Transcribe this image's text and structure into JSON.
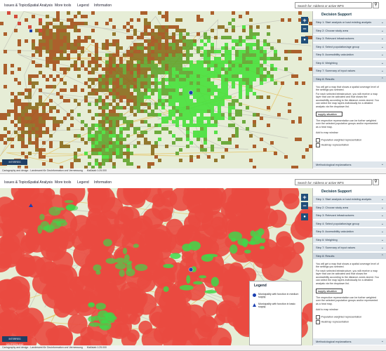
{
  "screenshots": [
    {
      "toolbar": {
        "menu": [
          "Issues & Topics",
          "Spatial Analysis",
          "More tools",
          "Legend",
          "Information"
        ],
        "search": "Search for: Address or active WFS"
      },
      "sidebar": {
        "title": "Decision Support",
        "steps": [
          "Step 1: Start analysis or load existing analysis",
          "Step 2: Choose study area",
          "Step 3: Relevant infrastructures",
          "Step 4: Select population/age group",
          "Step 5: Accessibility calculation",
          "Step 6: Weighting",
          "Step 7: Summary of input values",
          "Step 8: Results"
        ],
        "results": {
          "intro": "You will get a map that shows a spatial coverage level of the settings you selected.",
          "detail": "For each selected infrastructure, you will receive a map layer that can be activated and that shows the accessibility according to the distance zones stored. You can select the map layers individually for a detailed analysis via the dropdown list.",
          "dropdown": "supply situation",
          "weighting": "The respective representation can be further weighted over the selected population groups and/or represented as a heat map.",
          "add_label": "Add to map window:",
          "options": [
            "Population weighted representation",
            "Heatmap representation"
          ],
          "explanations": "Methodological explanations"
        }
      },
      "footer": {
        "credit": "Cartography and design : Landesamt für Geoinformation und Vermessung",
        "scale": "Maßstab 1:25.000"
      },
      "badge": "INTERREG DEUTSCHLAND"
    },
    {
      "toolbar": {
        "menu": [
          "Issues & Topics",
          "Spatial Analysis",
          "More tools",
          "Legend",
          "Information"
        ],
        "search": "Search for: Address or active WFS"
      },
      "sidebar": {
        "title": "Decision Support",
        "steps": [
          "Step 1: Start analysis or load existing analysis",
          "Step 2: Choose study area",
          "Step 3: Relevant infrastructures",
          "Step 4: Select population/age group",
          "Step 5: Accessibility calculation",
          "Step 6: Weighting",
          "Step 7: Summary of input values",
          "Step 8: Results"
        ],
        "results": {
          "intro": "You will get a map that shows a spatial coverage level of the settings you selected.",
          "detail": "For each selected infrastructure, you will receive a map layer that can be activated and that shows the accessibility according to the distance zones stored. You can select the map layers individually for a detailed analysis via the dropdown list.",
          "dropdown": "supply situation",
          "weighting": "The respective representation can be further weighted over the selected population groups and/or represented as a heat map.",
          "add_label": "Add to map window:",
          "options": [
            "Population weighted representation",
            "Heatmap representation"
          ],
          "explanations": "Methodological explanations"
        }
      },
      "footer": {
        "credit": "Cartography and design : Landesamt für Geoinformation und Vermessung",
        "scale": "Maßstab 1:25.000"
      },
      "badge": "INTERREG DEUTSCHLAND",
      "legend": {
        "title": "Legend",
        "items": [
          "Municipality with function in medium supply",
          "Municipality with function in basic supply"
        ]
      }
    }
  ]
}
